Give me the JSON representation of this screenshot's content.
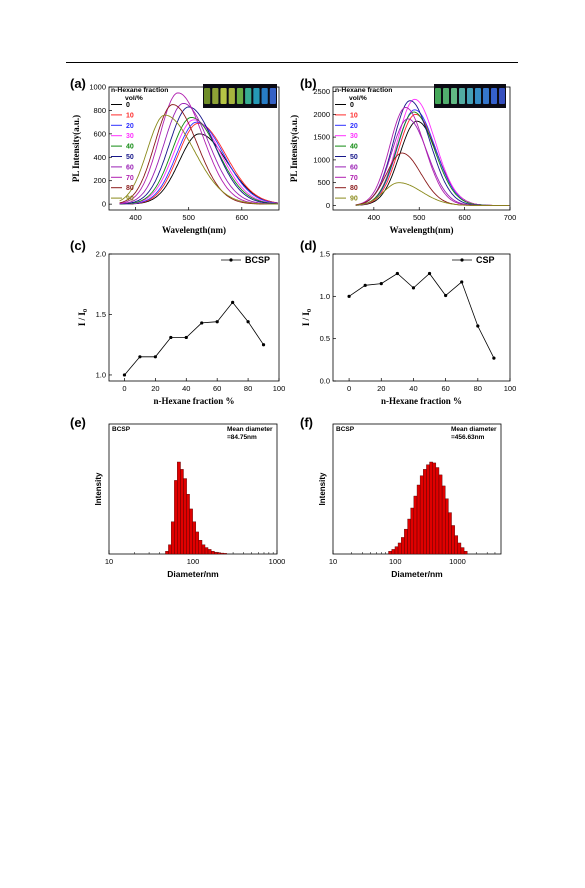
{
  "charts": {
    "a": {
      "panel_label": "(a)",
      "xlabel": "Wavelength(nm)",
      "ylabel": "PL Intensity(a.u.)",
      "xlim": [
        350,
        670
      ],
      "ylim": [
        -50,
        1000
      ],
      "xticks": [
        400,
        500,
        600
      ],
      "yticks": [
        0,
        200,
        400,
        600,
        800,
        1000
      ],
      "legend_title": "n-Hexane fraction",
      "legend_subtitle": "vol/%",
      "series": [
        {
          "name": "0",
          "color": "#000000",
          "peak": 520,
          "amp": 600,
          "sl": 38,
          "sr": 52
        },
        {
          "name": "10",
          "color": "#ff2a2a",
          "peak": 518,
          "amp": 690,
          "sl": 38,
          "sr": 52
        },
        {
          "name": "20",
          "color": "#3030ff",
          "peak": 515,
          "amp": 700,
          "sl": 38,
          "sr": 51
        },
        {
          "name": "30",
          "color": "#ff30ff",
          "peak": 510,
          "amp": 720,
          "sl": 38,
          "sr": 50
        },
        {
          "name": "40",
          "color": "#108a10",
          "peak": 505,
          "amp": 740,
          "sl": 37,
          "sr": 50
        },
        {
          "name": "50",
          "color": "#16168a",
          "peak": 500,
          "amp": 830,
          "sl": 37,
          "sr": 49
        },
        {
          "name": "60",
          "color": "#9a20b5",
          "peak": 490,
          "amp": 860,
          "sl": 36,
          "sr": 48
        },
        {
          "name": "70",
          "color": "#b020b0",
          "peak": 480,
          "amp": 950,
          "sl": 35,
          "sr": 47
        },
        {
          "name": "80",
          "color": "#8a1a1a",
          "peak": 470,
          "amp": 850,
          "sl": 34,
          "sr": 46
        },
        {
          "name": "90",
          "color": "#8a8a1a",
          "peak": 455,
          "amp": 760,
          "sl": 33,
          "sr": 55
        }
      ]
    },
    "b": {
      "panel_label": "(b)",
      "xlabel": "Wavelength(nm)",
      "ylabel": "PL Intensity(a.u.)",
      "xlim": [
        310,
        700
      ],
      "ylim": [
        -100,
        2600
      ],
      "xticks": [
        400,
        500,
        600,
        700
      ],
      "yticks": [
        0,
        500,
        1000,
        1500,
        2000,
        2500
      ],
      "legend_title": "n-Hexane fraction",
      "legend_subtitle": "vol/%",
      "series": [
        {
          "name": "0",
          "color": "#000000",
          "peak": 495,
          "amp": 1850,
          "sl": 38,
          "sr": 45
        },
        {
          "name": "10",
          "color": "#ff2a2a",
          "peak": 492,
          "amp": 2000,
          "sl": 38,
          "sr": 45
        },
        {
          "name": "20",
          "color": "#3030ff",
          "peak": 490,
          "amp": 2100,
          "sl": 38,
          "sr": 45
        },
        {
          "name": "30",
          "color": "#ff30ff",
          "peak": 490,
          "amp": 2330,
          "sl": 38,
          "sr": 45
        },
        {
          "name": "40",
          "color": "#108a10",
          "peak": 488,
          "amp": 2050,
          "sl": 38,
          "sr": 45
        },
        {
          "name": "50",
          "color": "#16168a",
          "peak": 480,
          "amp": 2300,
          "sl": 37,
          "sr": 44
        },
        {
          "name": "60",
          "color": "#9a20b5",
          "peak": 475,
          "amp": 1900,
          "sl": 36,
          "sr": 43
        },
        {
          "name": "70",
          "color": "#b020b0",
          "peak": 470,
          "amp": 2150,
          "sl": 35,
          "sr": 42
        },
        {
          "name": "80",
          "color": "#8a1a1a",
          "peak": 462,
          "amp": 1150,
          "sl": 34,
          "sr": 42
        },
        {
          "name": "90",
          "color": "#8a8a1a",
          "peak": 455,
          "amp": 500,
          "sl": 33,
          "sr": 50
        }
      ]
    },
    "c": {
      "panel_label": "(c)",
      "xlabel": "n-Hexane fraction %",
      "ylabel": "I / I0",
      "xlim": [
        -10,
        100
      ],
      "ylim": [
        0.95,
        2.0
      ],
      "xticks": [
        0,
        20,
        40,
        60,
        80,
        100
      ],
      "yticks": [
        1.0,
        1.5,
        2.0
      ],
      "ytick_labels": [
        "1.0",
        "1.5",
        "2.0"
      ],
      "legend": "BCSP",
      "x": [
        0,
        10,
        20,
        30,
        40,
        50,
        60,
        70,
        80,
        90
      ],
      "y": [
        1.0,
        1.15,
        1.15,
        1.31,
        1.31,
        1.43,
        1.44,
        1.6,
        1.44,
        1.25
      ]
    },
    "d": {
      "panel_label": "(d)",
      "xlabel": "n-Hexane fraction %",
      "ylabel": "I / I0",
      "xlim": [
        -10,
        100
      ],
      "ylim": [
        0.0,
        1.5
      ],
      "xticks": [
        0,
        20,
        40,
        60,
        80,
        100
      ],
      "yticks": [
        0.0,
        0.5,
        1.0,
        1.5
      ],
      "ytick_labels": [
        "0.0",
        "0.5",
        "1.0",
        "1.5"
      ],
      "legend": "CSP",
      "x": [
        0,
        10,
        20,
        30,
        40,
        50,
        60,
        70,
        80,
        90
      ],
      "y": [
        1.0,
        1.13,
        1.15,
        1.27,
        1.1,
        1.27,
        1.01,
        1.17,
        0.65,
        0.27
      ]
    },
    "e": {
      "panel_label": "(e)",
      "xlabel": "Diameter/nm",
      "ylabel": "Intensity",
      "xlim": [
        10,
        1000
      ],
      "xticks": [
        10,
        100,
        1000
      ],
      "ymax": 1.0,
      "legend": "BCSP",
      "note_line1": "Mean diameter",
      "note_line2": "=84.75nm",
      "bins": [
        {
          "left": 47,
          "right": 51,
          "value": 0.03
        },
        {
          "left": 51,
          "right": 55,
          "value": 0.1
        },
        {
          "left": 55,
          "right": 60,
          "value": 0.35
        },
        {
          "left": 60,
          "right": 65,
          "value": 0.8
        },
        {
          "left": 65,
          "right": 71,
          "value": 1.0
        },
        {
          "left": 71,
          "right": 77,
          "value": 0.92
        },
        {
          "left": 77,
          "right": 84,
          "value": 0.82
        },
        {
          "left": 84,
          "right": 91,
          "value": 0.65
        },
        {
          "left": 91,
          "right": 99,
          "value": 0.49
        },
        {
          "left": 99,
          "right": 108,
          "value": 0.35
        },
        {
          "left": 108,
          "right": 117,
          "value": 0.24
        },
        {
          "left": 117,
          "right": 128,
          "value": 0.15
        },
        {
          "left": 128,
          "right": 139,
          "value": 0.1
        },
        {
          "left": 139,
          "right": 151,
          "value": 0.07
        },
        {
          "left": 151,
          "right": 165,
          "value": 0.05
        },
        {
          "left": 165,
          "right": 180,
          "value": 0.03
        },
        {
          "left": 180,
          "right": 196,
          "value": 0.02
        },
        {
          "left": 196,
          "right": 213,
          "value": 0.015
        },
        {
          "left": 213,
          "right": 232,
          "value": 0.01
        },
        {
          "left": 232,
          "right": 252,
          "value": 0.007
        }
      ]
    },
    "f": {
      "panel_label": "(f)",
      "xlabel": "Diameter/nm",
      "ylabel": "Intensity",
      "xlim": [
        10,
        5000
      ],
      "xticks": [
        10,
        100,
        1000
      ],
      "ymax": 1.0,
      "legend": "BCSP",
      "note_line1": "Mean diameter",
      "note_line2": "=456.63nm",
      "bins": [
        {
          "left": 78,
          "right": 88,
          "value": 0.03
        },
        {
          "left": 88,
          "right": 99,
          "value": 0.05
        },
        {
          "left": 99,
          "right": 111,
          "value": 0.08
        },
        {
          "left": 111,
          "right": 125,
          "value": 0.12
        },
        {
          "left": 125,
          "right": 140,
          "value": 0.18
        },
        {
          "left": 140,
          "right": 158,
          "value": 0.27
        },
        {
          "left": 158,
          "right": 177,
          "value": 0.38
        },
        {
          "left": 177,
          "right": 199,
          "value": 0.5
        },
        {
          "left": 199,
          "right": 224,
          "value": 0.63
        },
        {
          "left": 224,
          "right": 251,
          "value": 0.75
        },
        {
          "left": 251,
          "right": 282,
          "value": 0.85
        },
        {
          "left": 282,
          "right": 317,
          "value": 0.92
        },
        {
          "left": 317,
          "right": 356,
          "value": 0.97
        },
        {
          "left": 356,
          "right": 400,
          "value": 1.0
        },
        {
          "left": 400,
          "right": 449,
          "value": 0.99
        },
        {
          "left": 449,
          "right": 504,
          "value": 0.94
        },
        {
          "left": 504,
          "right": 566,
          "value": 0.86
        },
        {
          "left": 566,
          "right": 636,
          "value": 0.74
        },
        {
          "left": 636,
          "right": 714,
          "value": 0.6
        },
        {
          "left": 714,
          "right": 802,
          "value": 0.45
        },
        {
          "left": 802,
          "right": 901,
          "value": 0.31
        },
        {
          "left": 901,
          "right": 1012,
          "value": 0.2
        },
        {
          "left": 1012,
          "right": 1137,
          "value": 0.12
        },
        {
          "left": 1137,
          "right": 1277,
          "value": 0.07
        },
        {
          "left": 1277,
          "right": 1434,
          "value": 0.03
        }
      ]
    }
  },
  "chart_data": [
    {
      "type": "line",
      "panel": "(a)",
      "xlabel": "Wavelength(nm)",
      "ylabel": "PL Intensity(a.u.)",
      "xlim": [
        350,
        670
      ],
      "ylim": [
        -50,
        1000
      ],
      "legend": "n-Hexane fraction vol/%",
      "series_peaks": [
        {
          "name": "0",
          "peak_nm": 520,
          "peak_intensity": 600
        },
        {
          "name": "10",
          "peak_nm": 518,
          "peak_intensity": 690
        },
        {
          "name": "20",
          "peak_nm": 515,
          "peak_intensity": 700
        },
        {
          "name": "30",
          "peak_nm": 510,
          "peak_intensity": 720
        },
        {
          "name": "40",
          "peak_nm": 505,
          "peak_intensity": 740
        },
        {
          "name": "50",
          "peak_nm": 500,
          "peak_intensity": 830
        },
        {
          "name": "60",
          "peak_nm": 490,
          "peak_intensity": 860
        },
        {
          "name": "70",
          "peak_nm": 480,
          "peak_intensity": 950
        },
        {
          "name": "80",
          "peak_nm": 470,
          "peak_intensity": 850
        },
        {
          "name": "90",
          "peak_nm": 455,
          "peak_intensity": 760
        }
      ]
    },
    {
      "type": "line",
      "panel": "(b)",
      "xlabel": "Wavelength(nm)",
      "ylabel": "PL Intensity(a.u.)",
      "xlim": [
        310,
        700
      ],
      "ylim": [
        -100,
        2600
      ],
      "legend": "n-Hexane fraction vol/%",
      "series_peaks": [
        {
          "name": "0",
          "peak_nm": 495,
          "peak_intensity": 1850
        },
        {
          "name": "10",
          "peak_nm": 492,
          "peak_intensity": 2000
        },
        {
          "name": "20",
          "peak_nm": 490,
          "peak_intensity": 2100
        },
        {
          "name": "30",
          "peak_nm": 490,
          "peak_intensity": 2330
        },
        {
          "name": "40",
          "peak_nm": 488,
          "peak_intensity": 2050
        },
        {
          "name": "50",
          "peak_nm": 480,
          "peak_intensity": 2300
        },
        {
          "name": "60",
          "peak_nm": 475,
          "peak_intensity": 1900
        },
        {
          "name": "70",
          "peak_nm": 470,
          "peak_intensity": 2150
        },
        {
          "name": "80",
          "peak_nm": 462,
          "peak_intensity": 1150
        },
        {
          "name": "90",
          "peak_nm": 455,
          "peak_intensity": 500
        }
      ]
    },
    {
      "type": "line",
      "panel": "(c)",
      "xlabel": "n-Hexane fraction %",
      "ylabel": "I / I0",
      "series": [
        {
          "name": "BCSP",
          "x": [
            0,
            10,
            20,
            30,
            40,
            50,
            60,
            70,
            80,
            90
          ],
          "values": [
            1.0,
            1.15,
            1.15,
            1.31,
            1.31,
            1.43,
            1.44,
            1.6,
            1.44,
            1.25
          ]
        }
      ]
    },
    {
      "type": "line",
      "panel": "(d)",
      "xlabel": "n-Hexane fraction %",
      "ylabel": "I / I0",
      "series": [
        {
          "name": "CSP",
          "x": [
            0,
            10,
            20,
            30,
            40,
            50,
            60,
            70,
            80,
            90
          ],
          "values": [
            1.0,
            1.13,
            1.15,
            1.27,
            1.1,
            1.27,
            1.01,
            1.17,
            0.65,
            0.27
          ]
        }
      ]
    },
    {
      "type": "bar",
      "panel": "(e)",
      "xlabel": "Diameter/nm",
      "ylabel": "Intensity",
      "legend": "BCSP",
      "annotation": "Mean diameter =84.75nm",
      "x_scale": "log"
    },
    {
      "type": "bar",
      "panel": "(f)",
      "xlabel": "Diameter/nm",
      "ylabel": "Intensity",
      "legend": "BCSP",
      "annotation": "Mean diameter =456.63nm",
      "x_scale": "log"
    }
  ]
}
